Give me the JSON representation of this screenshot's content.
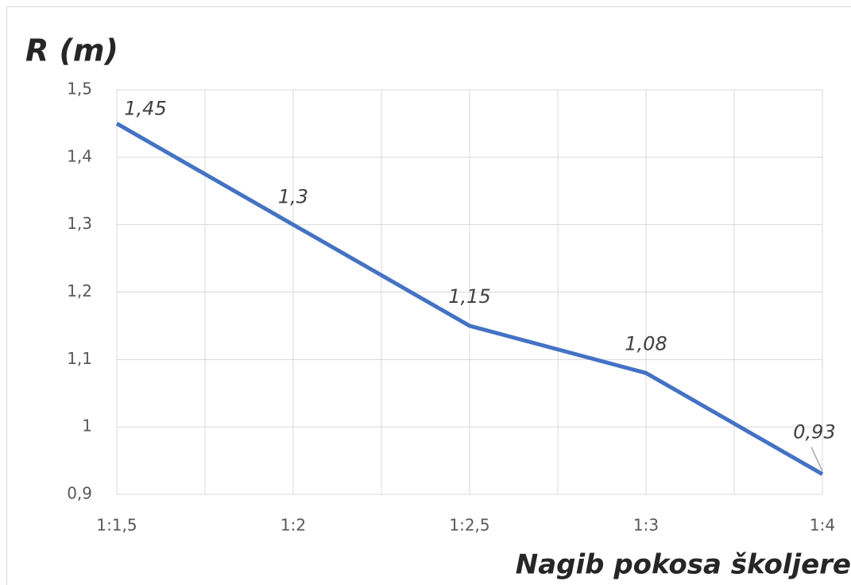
{
  "chart_data": {
    "type": "line",
    "title": "R (m)",
    "x_label": "Nagib pokosa školjere",
    "categories": [
      "1:1,5",
      "1:2",
      "1:2,5",
      "1:3",
      "1:4"
    ],
    "values": [
      1.45,
      1.3,
      1.15,
      1.08,
      0.93
    ],
    "value_labels": [
      "1,45",
      "1,3",
      "1,15",
      "1,08",
      "0,93"
    ],
    "color": "#4472c4",
    "ylim": [
      0.9,
      1.5
    ],
    "yticks": [
      {
        "value": 0.9,
        "label": "0,9"
      },
      1,
      {
        "value": 1.1,
        "label": "1,1"
      },
      {
        "value": 1.2,
        "label": "1,2"
      },
      {
        "value": 1.3,
        "label": "1,3"
      },
      {
        "value": 1.4,
        "label": "1,4"
      },
      {
        "value": 1.5,
        "label": "1,5"
      }
    ],
    "grid": true
  }
}
